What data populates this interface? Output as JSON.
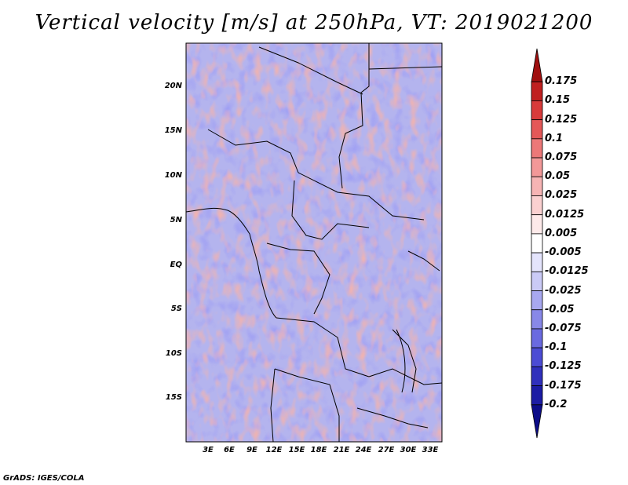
{
  "title": "Vertical velocity [m/s] at 250hPa, VT: 2019021200",
  "credit": "GrADS: IGES/COLA",
  "map": {
    "region": "Central Africa",
    "variable": "Vertical velocity",
    "level": "250hPa",
    "valid_time": "2019021200",
    "lon_labels": [
      "3E",
      "6E",
      "9E",
      "12E",
      "15E",
      "18E",
      "21E",
      "24E",
      "27E",
      "30E",
      "33E"
    ],
    "lat_labels": [
      "20N",
      "15N",
      "10N",
      "5N",
      "EQ",
      "5S",
      "10S",
      "15S"
    ],
    "colors": {
      "strong_up": "#a01010",
      "up": "#e06060",
      "weak_up": "#f8c8c8",
      "neutral": "#ffffff",
      "weak_down": "#c8c8f8",
      "down": "#6060e0",
      "strong_down": "#2020a0"
    }
  },
  "colorbar": {
    "labels": [
      "0.175",
      "0.15",
      "0.125",
      "0.1",
      "0.075",
      "0.05",
      "0.025",
      "0.0125",
      "0.005",
      "-0.005",
      "-0.0125",
      "-0.025",
      "-0.05",
      "-0.075",
      "-0.1",
      "-0.125",
      "-0.175",
      "-0.2"
    ],
    "colors": [
      "#a01010",
      "#c02020",
      "#d83a3a",
      "#e45858",
      "#ec7878",
      "#f29898",
      "#f6b4b4",
      "#fad0d0",
      "#fdeaea",
      "#ffffff",
      "#e4e4fc",
      "#cacaf6",
      "#a8a8f0",
      "#8888e8",
      "#6a6ae0",
      "#4c4cd4",
      "#3030bc",
      "#1c1ca4",
      "#0c0c88"
    ]
  }
}
